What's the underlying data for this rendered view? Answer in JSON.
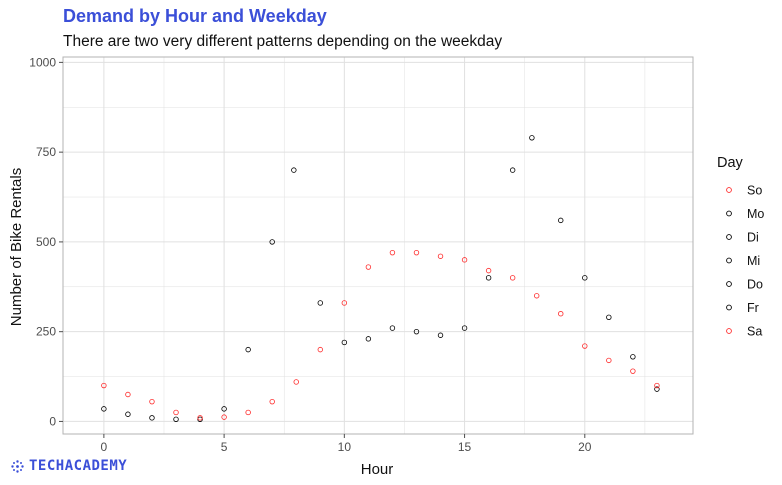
{
  "colors": {
    "title": "#3b4fd8",
    "red": "#ff2a2a",
    "black": "#000000",
    "grid": "#e0e0e0",
    "panel_border": "#b3b3b3",
    "brand": "#3b4fd8"
  },
  "brand": {
    "text": "TECHACADEMY",
    "icon": "sparkle-dots-icon"
  },
  "chart_data": {
    "type": "scatter",
    "title": "Demand by Hour and Weekday",
    "subtitle": "There are two very different patterns depending on the weekday",
    "xlabel": "Hour",
    "ylabel": "Number of Bike Rentals",
    "xlim": [
      -1.7,
      24.5
    ],
    "ylim": [
      -35,
      1015
    ],
    "xticks": [
      0,
      5,
      10,
      15,
      20
    ],
    "yticks": [
      0,
      250,
      500,
      750,
      1000
    ],
    "grid": true,
    "marker": "open-circle",
    "legend": {
      "title": "Day",
      "position": "right",
      "entries": [
        {
          "label": "So",
          "color": "#ff2a2a"
        },
        {
          "label": "Mo",
          "color": "#000000"
        },
        {
          "label": "Di",
          "color": "#000000"
        },
        {
          "label": "Mi",
          "color": "#000000"
        },
        {
          "label": "Do",
          "color": "#000000"
        },
        {
          "label": "Fr",
          "color": "#000000"
        },
        {
          "label": "Sa",
          "color": "#ff2a2a"
        }
      ]
    },
    "series": [
      {
        "group": "weekday",
        "color": "#000000",
        "x": [
          0,
          1,
          2,
          3,
          4,
          5,
          6,
          7,
          7.9,
          9,
          10,
          11,
          12,
          13,
          14,
          15,
          16,
          17,
          17.8,
          19,
          20,
          21,
          22,
          23
        ],
        "y": [
          35,
          20,
          10,
          6,
          6,
          35,
          200,
          500,
          700,
          330,
          220,
          230,
          260,
          250,
          240,
          260,
          400,
          700,
          790,
          560,
          400,
          290,
          180,
          90
        ]
      },
      {
        "group": "weekend",
        "color": "#ff2a2a",
        "x": [
          0,
          1,
          2,
          3,
          4,
          5,
          6,
          7,
          8,
          9,
          10,
          11,
          12,
          13,
          14,
          15,
          16,
          17,
          18,
          19,
          20,
          21,
          22,
          23
        ],
        "y": [
          100,
          75,
          55,
          25,
          10,
          12,
          25,
          55,
          110,
          200,
          330,
          430,
          470,
          470,
          460,
          450,
          420,
          400,
          350,
          300,
          210,
          170,
          140,
          100
        ]
      }
    ]
  }
}
